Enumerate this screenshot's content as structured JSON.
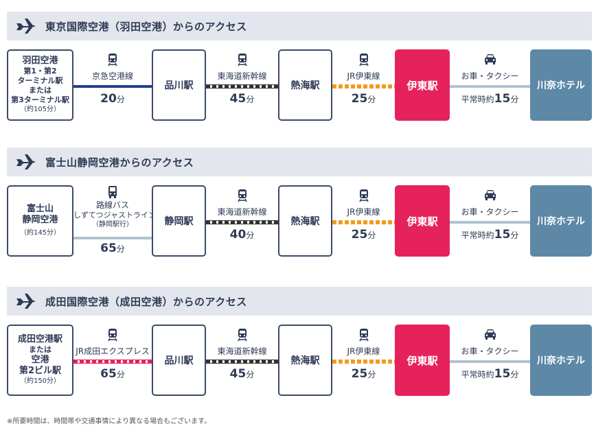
{
  "colors": {
    "header_bg": "#e3e6ec",
    "text_navy": "#2e3a55",
    "ito_station": "#e6225c",
    "hotel": "#5d89a7",
    "keikyu_line": "#263e8c",
    "jr_ito_line": "#f39a1f",
    "bus_taxi_line": "#aec3cf",
    "narita_express_line": "#e6225c"
  },
  "icons": {
    "plane": "airplane-icon",
    "train": "train-icon",
    "bus": "bus-icon",
    "car": "car-icon"
  },
  "sections": [
    {
      "title": "東京国際空港（羽田空港）からのアクセス",
      "origin_lines": [
        "羽田空港",
        "第1・第2",
        "ターミナル駅",
        "または",
        "第3ターミナル駅"
      ],
      "origin_note": "（約105分）",
      "seg1_label": "京急空港線",
      "seg1_num": "20",
      "station1": "品川駅",
      "seg2_label": "東海道新幹線",
      "seg2_num": "45",
      "station2": "熱海駅",
      "seg3_label": "JR伊東線",
      "seg3_num": "25",
      "ito": "伊東駅",
      "seg4_label": "お車・タクシー",
      "seg4_pre": "平常時約",
      "seg4_num": "15",
      "hotel": "川奈ホテル"
    },
    {
      "title": "富士山静岡空港からのアクセス",
      "origin_lines": [
        "富士山",
        "静岡空港"
      ],
      "origin_note": "（約145分）",
      "seg1_label_lines": [
        "路線バス",
        "しずてつジャストライン",
        "（静岡駅行）"
      ],
      "seg1_num": "65",
      "station1": "静岡駅",
      "seg2_label": "東海道新幹線",
      "seg2_num": "40",
      "station2": "熱海駅",
      "seg3_label": "JR伊東線",
      "seg3_num": "25",
      "ito": "伊東駅",
      "seg4_label": "お車・タクシー",
      "seg4_pre": "平常時約",
      "seg4_num": "15",
      "hotel": "川奈ホテル"
    },
    {
      "title": "成田国際空港（成田空港）からのアクセス",
      "origin_lines": [
        "成田空港駅",
        "または",
        "空港",
        "第2ビル駅"
      ],
      "origin_note": "（約150分）",
      "seg1_label": "JR成田エクスプレス",
      "seg1_num": "65",
      "station1": "品川駅",
      "seg2_label": "東海道新幹線",
      "seg2_num": "45",
      "station2": "熱海駅",
      "seg3_label": "JR伊東線",
      "seg3_num": "25",
      "ito": "伊東駅",
      "seg4_label": "お車・タクシー",
      "seg4_pre": "平常時約",
      "seg4_num": "15",
      "hotel": "川奈ホテル"
    }
  ],
  "minute_unit": "分",
  "footnote": "※所要時間は、時間帯や交通事情により異なる場合もございます。"
}
